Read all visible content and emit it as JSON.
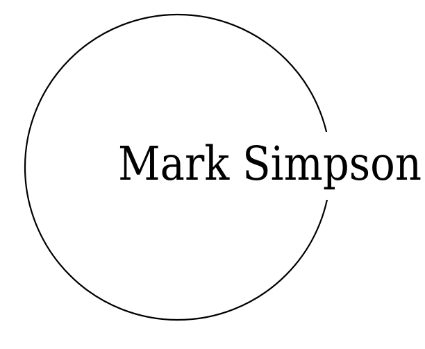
{
  "logo": {
    "name": "Mark Simpson",
    "stroke_color": "#000000",
    "text_color": "#000000",
    "background": "#ffffff"
  }
}
